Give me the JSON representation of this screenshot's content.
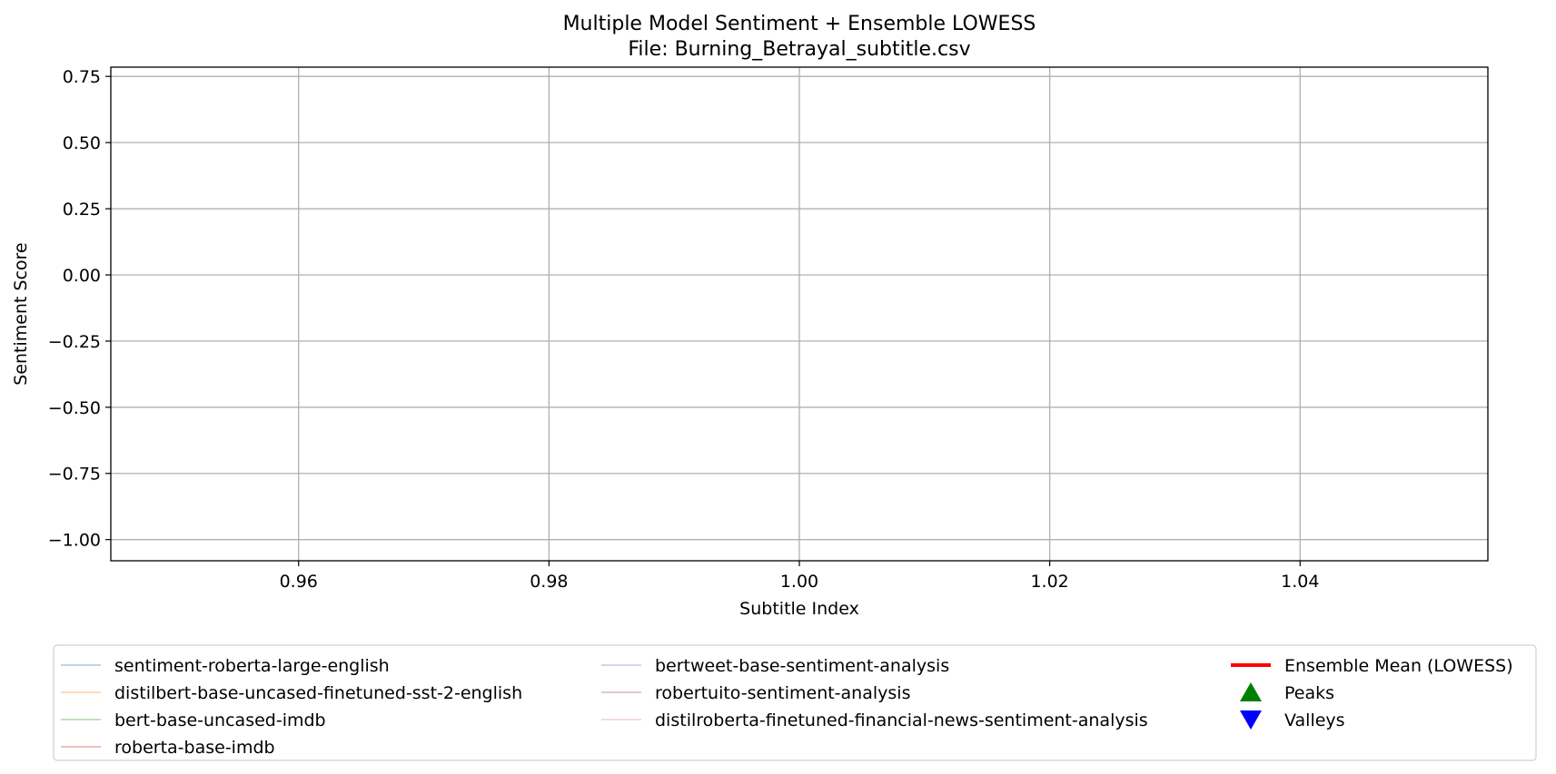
{
  "chart_data": {
    "type": "line",
    "title": "Multiple Model Sentiment + Ensemble LOWESS",
    "subtitle": "File: Burning_Betrayal_subtitle.csv",
    "xlabel": "Subtitle Index",
    "ylabel": "Sentiment Score",
    "xlim": [
      0.945,
      1.055
    ],
    "ylim": [
      -1.08,
      0.785
    ],
    "x_ticks": [
      0.96,
      0.98,
      1.0,
      1.02,
      1.04
    ],
    "x_tick_labels": [
      "0.96",
      "0.98",
      "1.00",
      "1.02",
      "1.04"
    ],
    "y_ticks": [
      0.75,
      0.5,
      0.25,
      0.0,
      -0.25,
      -0.5,
      -0.75,
      -1.0
    ],
    "y_tick_labels": [
      "0.75",
      "0.50",
      "0.25",
      "0.00",
      "−0.25",
      "−0.50",
      "−0.75",
      "−1.00"
    ],
    "grid": true,
    "legend_position": "bottom",
    "series": [
      {
        "name": "sentiment-roberta-large-english",
        "color": "#1f77b4",
        "values": []
      },
      {
        "name": "distilbert-base-uncased-finetuned-sst-2-english",
        "color": "#ff7f0e",
        "values": []
      },
      {
        "name": "bert-base-uncased-imdb",
        "color": "#2ca02c",
        "values": []
      },
      {
        "name": "roberta-base-imdb",
        "color": "#d62728",
        "values": []
      },
      {
        "name": "bertweet-base-sentiment-analysis",
        "color": "#9467bd",
        "values": []
      },
      {
        "name": "robertuito-sentiment-analysis",
        "color": "#8c564b",
        "values": []
      },
      {
        "name": "distilroberta-finetuned-financial-news-sentiment-analysis",
        "color": "#e377c2",
        "values": []
      }
    ],
    "ensemble": {
      "name": "Ensemble Mean (LOWESS)",
      "color": "#ff0000",
      "values": []
    },
    "peaks": {
      "name": "Peaks",
      "color": "#008000",
      "marker": "triangle-up-icon",
      "points": []
    },
    "valleys": {
      "name": "Valleys",
      "color": "#0000ff",
      "marker": "triangle-down-icon",
      "points": []
    }
  }
}
